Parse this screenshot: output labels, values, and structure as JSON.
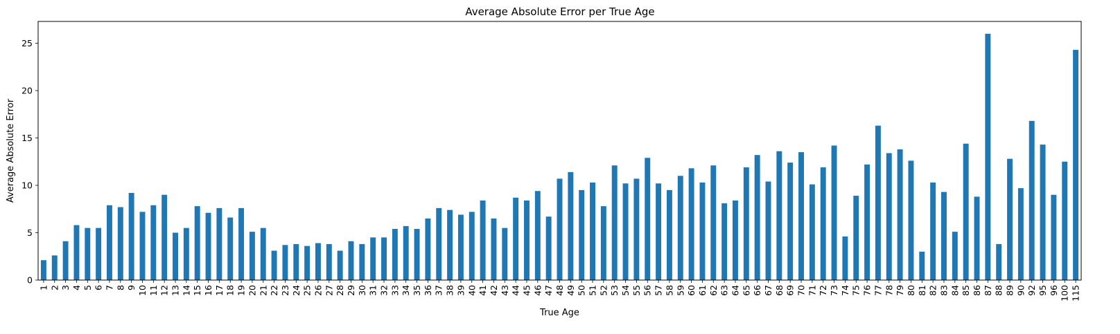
{
  "chart_data": {
    "type": "bar",
    "title": "Average Absolute Error per True Age",
    "xlabel": "True Age",
    "ylabel": "Average Absolute Error",
    "ylim": [
      0,
      27.3
    ],
    "yticks": [
      0,
      5,
      10,
      15,
      20,
      25
    ],
    "grid": false,
    "bar_color": "#1f77b4",
    "categories": [
      "1",
      "2",
      "3",
      "4",
      "5",
      "6",
      "7",
      "8",
      "9",
      "10",
      "11",
      "12",
      "13",
      "14",
      "15",
      "16",
      "17",
      "18",
      "19",
      "20",
      "21",
      "22",
      "23",
      "24",
      "25",
      "26",
      "27",
      "28",
      "29",
      "30",
      "31",
      "32",
      "33",
      "34",
      "35",
      "36",
      "37",
      "38",
      "39",
      "40",
      "41",
      "42",
      "43",
      "44",
      "45",
      "46",
      "47",
      "48",
      "49",
      "50",
      "51",
      "52",
      "53",
      "54",
      "55",
      "56",
      "57",
      "58",
      "59",
      "60",
      "61",
      "62",
      "63",
      "64",
      "65",
      "66",
      "67",
      "68",
      "69",
      "70",
      "71",
      "72",
      "73",
      "74",
      "75",
      "76",
      "77",
      "78",
      "79",
      "80",
      "81",
      "82",
      "83",
      "84",
      "85",
      "86",
      "87",
      "88",
      "89",
      "90",
      "92",
      "95",
      "96",
      "100",
      "115"
    ],
    "values": [
      2.1,
      2.6,
      4.1,
      5.8,
      5.5,
      5.5,
      7.9,
      7.7,
      9.2,
      7.2,
      7.9,
      9.0,
      5.0,
      5.5,
      7.8,
      7.1,
      7.6,
      6.6,
      7.6,
      5.1,
      5.5,
      3.1,
      3.7,
      3.8,
      3.6,
      3.9,
      3.8,
      3.1,
      4.1,
      3.8,
      4.5,
      4.5,
      5.4,
      5.7,
      5.4,
      6.5,
      7.6,
      7.4,
      6.9,
      7.2,
      8.4,
      6.5,
      5.5,
      8.7,
      8.4,
      9.4,
      6.7,
      10.7,
      11.4,
      9.5,
      10.3,
      7.8,
      12.1,
      10.2,
      10.7,
      12.9,
      10.2,
      9.5,
      11.0,
      11.8,
      10.3,
      12.1,
      8.1,
      8.4,
      11.9,
      13.2,
      10.4,
      13.6,
      12.4,
      13.5,
      10.1,
      11.9,
      14.2,
      4.6,
      8.9,
      12.2,
      16.3,
      13.4,
      13.8,
      12.6,
      3.0,
      10.3,
      9.3,
      5.1,
      14.4,
      8.8,
      26.0,
      3.8,
      12.8,
      9.7,
      16.8,
      14.3,
      9.0,
      12.5,
      24.3
    ]
  }
}
